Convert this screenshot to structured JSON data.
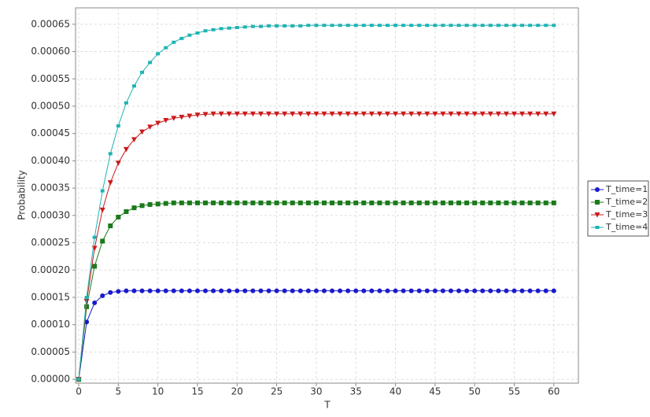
{
  "chart_data": {
    "type": "line",
    "x_label": "T",
    "y_label": "Probability",
    "x": [
      0,
      1,
      2,
      3,
      4,
      5,
      6,
      7,
      8,
      9,
      10,
      11,
      12,
      13,
      14,
      15,
      16,
      17,
      18,
      19,
      20,
      21,
      22,
      23,
      24,
      25,
      26,
      27,
      28,
      29,
      30,
      31,
      32,
      33,
      34,
      35,
      36,
      37,
      38,
      39,
      40,
      41,
      42,
      43,
      44,
      45,
      46,
      47,
      48,
      49,
      50,
      51,
      52,
      53,
      54,
      55,
      56,
      57,
      58,
      59,
      60
    ],
    "series": [
      {
        "name": "T_time=1",
        "color": "#1a1acc",
        "marker": "circle",
        "values": [
          0,
          0.000105,
          0.00014,
          0.000153,
          0.000159,
          0.000161,
          0.000162,
          0.000162,
          0.000162,
          0.000162,
          0.000162,
          0.000162,
          0.000162,
          0.000162,
          0.000162,
          0.000162,
          0.000162,
          0.000162,
          0.000162,
          0.000162,
          0.000162,
          0.000162,
          0.000162,
          0.000162,
          0.000162,
          0.000162,
          0.000162,
          0.000162,
          0.000162,
          0.000162,
          0.000162,
          0.000162,
          0.000162,
          0.000162,
          0.000162,
          0.000162,
          0.000162,
          0.000162,
          0.000162,
          0.000162,
          0.000162,
          0.000162,
          0.000162,
          0.000162,
          0.000162,
          0.000162,
          0.000162,
          0.000162,
          0.000162,
          0.000162,
          0.000162,
          0.000162,
          0.000162,
          0.000162,
          0.000162,
          0.000162,
          0.000162,
          0.000162,
          0.000162,
          0.000162,
          0.000162
        ]
      },
      {
        "name": "T_time=2",
        "color": "#1a7a1a",
        "marker": "square",
        "values": [
          0,
          0.000133,
          0.000207,
          0.000253,
          0.000281,
          0.000297,
          0.000307,
          0.000314,
          0.000318,
          0.00032,
          0.000321,
          0.000322,
          0.000323,
          0.000323,
          0.000323,
          0.000323,
          0.000323,
          0.000323,
          0.000323,
          0.000323,
          0.000323,
          0.000323,
          0.000323,
          0.000323,
          0.000323,
          0.000323,
          0.000323,
          0.000323,
          0.000323,
          0.000323,
          0.000323,
          0.000323,
          0.000323,
          0.000323,
          0.000323,
          0.000323,
          0.000323,
          0.000323,
          0.000323,
          0.000323,
          0.000323,
          0.000323,
          0.000323,
          0.000323,
          0.000323,
          0.000323,
          0.000323,
          0.000323,
          0.000323,
          0.000323,
          0.000323,
          0.000323,
          0.000323,
          0.000323,
          0.000323,
          0.000323,
          0.000323,
          0.000323,
          0.000323,
          0.000323,
          0.000323
        ]
      },
      {
        "name": "T_time=3",
        "color": "#cc1a1a",
        "marker": "triangle-down",
        "values": [
          0,
          0.000143,
          0.00024,
          0.00031,
          0.00036,
          0.000396,
          0.000421,
          0.000439,
          0.000453,
          0.000462,
          0.000469,
          0.000474,
          0.000478,
          0.00048,
          0.000482,
          0.000484,
          0.000485,
          0.000486,
          0.000486,
          0.000486,
          0.000486,
          0.000486,
          0.000486,
          0.000486,
          0.000486,
          0.000486,
          0.000486,
          0.000486,
          0.000486,
          0.000486,
          0.000486,
          0.000486,
          0.000486,
          0.000486,
          0.000486,
          0.000486,
          0.000486,
          0.000486,
          0.000486,
          0.000486,
          0.000486,
          0.000486,
          0.000486,
          0.000486,
          0.000486,
          0.000486,
          0.000486,
          0.000486,
          0.000486,
          0.000486,
          0.000486,
          0.000486,
          0.000486,
          0.000486,
          0.000486,
          0.000486,
          0.000486,
          0.000486,
          0.000486,
          0.000486,
          0.000486
        ]
      },
      {
        "name": "T_time=4",
        "color": "#1fb3b3",
        "marker": "square-small",
        "values": [
          0,
          0.00015,
          0.00026,
          0.000345,
          0.000413,
          0.000464,
          0.000506,
          0.000537,
          0.000562,
          0.00058,
          0.000596,
          0.000607,
          0.000617,
          0.000624,
          0.00063,
          0.000634,
          0.000638,
          0.00064,
          0.000642,
          0.000643,
          0.000644,
          0.000645,
          0.000646,
          0.000646,
          0.000647,
          0.000647,
          0.000647,
          0.000647,
          0.000647,
          0.000648,
          0.000648,
          0.000648,
          0.000648,
          0.000648,
          0.000648,
          0.000648,
          0.000648,
          0.000648,
          0.000648,
          0.000648,
          0.000648,
          0.000648,
          0.000648,
          0.000648,
          0.000648,
          0.000648,
          0.000648,
          0.000648,
          0.000648,
          0.000648,
          0.000648,
          0.000648,
          0.000648,
          0.000648,
          0.000648,
          0.000648,
          0.000648,
          0.000648,
          0.000648,
          0.000648,
          0.000648
        ]
      }
    ],
    "xlim": [
      -0.4,
      63.1
    ],
    "xticks": [
      0,
      5,
      10,
      15,
      20,
      25,
      30,
      35,
      40,
      45,
      50,
      55,
      60
    ],
    "ylim": [
      -7e-06,
      0.00068
    ],
    "yticks": [
      {
        "value": 0,
        "label": "0.00000"
      },
      {
        "value": 5e-05,
        "label": "0.00005"
      },
      {
        "value": 0.0001,
        "label": "0.00010"
      },
      {
        "value": 0.00015,
        "label": "0.00015"
      },
      {
        "value": 0.0002,
        "label": "0.00020"
      },
      {
        "value": 0.00025,
        "label": "0.00025"
      },
      {
        "value": 0.0003,
        "label": "0.00030"
      },
      {
        "value": 0.00035,
        "label": "0.00035"
      },
      {
        "value": 0.0004,
        "label": "0.00040"
      },
      {
        "value": 0.00045,
        "label": "0.00045"
      },
      {
        "value": 0.0005,
        "label": "0.00050"
      },
      {
        "value": 0.00055,
        "label": "0.00055"
      },
      {
        "value": 0.0006,
        "label": "0.00060"
      },
      {
        "value": 0.00065,
        "label": "0.00065"
      }
    ],
    "grid": true,
    "legend": "right"
  }
}
